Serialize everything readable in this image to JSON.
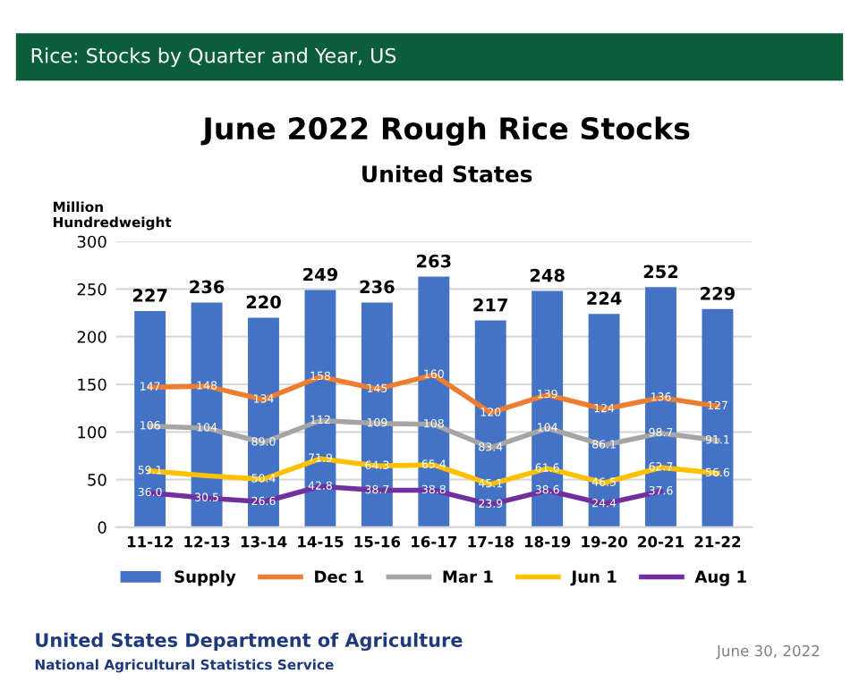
{
  "chart_data": {
    "type": "bar",
    "title": "June 2022 Rough Rice Stocks",
    "subtitle": "United States",
    "ylabel": "Million\nHundredweight",
    "annotations": [
      "Rice: Stocks by Quarter and Year, US",
      "United States Department of Agriculture",
      "National Agricultural Statistics Service",
      "June 30, 2022"
    ],
    "categories": [
      "11-12",
      "12-13",
      "13-14",
      "14-15",
      "15-16",
      "16-17",
      "17-18",
      "18-19",
      "19-20",
      "20-21",
      "21-22"
    ],
    "series": [
      {
        "name": "Supply",
        "color": "#4472c4",
        "values": [
          227,
          236,
          220,
          249,
          236,
          263,
          217,
          248,
          224,
          252,
          229
        ],
        "value_labels": [
          "227",
          "236",
          "220",
          "249",
          "236",
          "263",
          "217",
          "248",
          "224",
          "252",
          "229"
        ]
      },
      {
        "name": "Dec 1",
        "type": "line",
        "color": "#ed7d31",
        "values": [
          147,
          148,
          134,
          158,
          145,
          160,
          120,
          139,
          124,
          136,
          127
        ],
        "value_labels": [
          "147",
          "148",
          "134",
          "158",
          "145",
          "160",
          "120",
          "139",
          "124",
          "136",
          "127"
        ]
      },
      {
        "name": "Mar 1",
        "type": "line",
        "color": "#a5a5a5",
        "values": [
          106,
          104,
          89.0,
          112,
          109,
          108,
          83.4,
          104,
          86.1,
          98.7,
          91.1
        ],
        "value_labels": [
          "106",
          "104",
          "89.0",
          "112",
          "109",
          "108",
          "83.4",
          "104",
          "86.1",
          "98.7",
          "91.1"
        ]
      },
      {
        "name": "Jun 1",
        "type": "line",
        "color": "#ffc000",
        "values": [
          59.1,
          54,
          50.4,
          71.9,
          64.3,
          65.4,
          45.1,
          61.6,
          46.5,
          62.7,
          56.6
        ],
        "value_labels": [
          "59.1",
          null,
          "50.4",
          "71.9",
          "64.3",
          "65.4",
          "45.1",
          "61.6",
          "46.5",
          "62.7",
          "56.6"
        ]
      },
      {
        "name": "Aug 1",
        "type": "line",
        "color": "#7030a0",
        "values": [
          36.0,
          30.5,
          26.6,
          42.8,
          38.7,
          38.8,
          23.9,
          38.6,
          24.4,
          37.6,
          null
        ],
        "value_labels": [
          "36.0",
          "30.5",
          "26.6",
          "42.8",
          "38.7",
          "38.8",
          "23.9",
          "38.6",
          "24.4",
          "37.6",
          null
        ]
      }
    ],
    "ylim": [
      0,
      300
    ],
    "yticks": [
      0,
      50,
      100,
      150,
      200,
      250,
      300
    ],
    "grid": "y",
    "legend": "bottom",
    "marker": "none",
    "line_style": "solid"
  }
}
